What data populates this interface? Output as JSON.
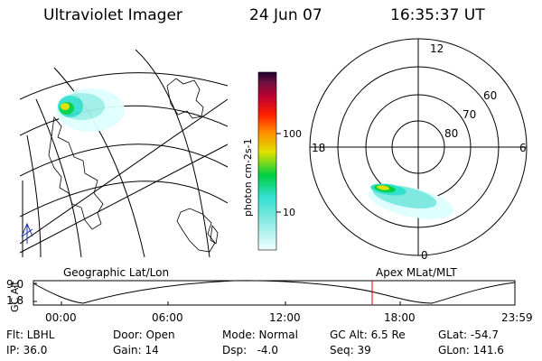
{
  "header": {
    "instrument": "Ultraviolet Imager",
    "date": "24 Jun 07",
    "time": "16:35:37 UT"
  },
  "colorbar": {
    "unit_label": "photon cm-2s-1",
    "ticks": [
      "100",
      "10"
    ]
  },
  "polar_plot": {
    "mlt_labels": [
      "12",
      "18",
      "6",
      "0"
    ],
    "lat_labels": [
      "60",
      "70",
      "80"
    ]
  },
  "map_titles": {
    "geographic": "Geographic Lat/Lon",
    "apex": "Apex MLat/MLT"
  },
  "altitude_plot": {
    "ylabel": "GC Alt",
    "y_ticks": [
      "9.0",
      "1.8"
    ],
    "x_ticks": [
      "00:00",
      "06:00",
      "12:00",
      "18:00",
      "23:59"
    ],
    "current_time_marker": "16:35"
  },
  "status": {
    "flt": "Flt: LBHL",
    "ip": "IP: 36.0",
    "door": "Door: Open",
    "gain": "Gain: 14",
    "mode": "Mode: Normal",
    "dsp": "Dsp:   -4.0",
    "gc_alt": "GC Alt: 6.5 Re",
    "seq": "Seq: 39",
    "glat": "GLat: -54.7",
    "glon": "GLon: 141.6"
  },
  "colors": {
    "marker": "#e00000",
    "scale": [
      "#dfffff",
      "#33e0d0",
      "#00d040",
      "#e0e000",
      "#ff9000",
      "#ff2000",
      "#c00030",
      "#200030"
    ]
  }
}
